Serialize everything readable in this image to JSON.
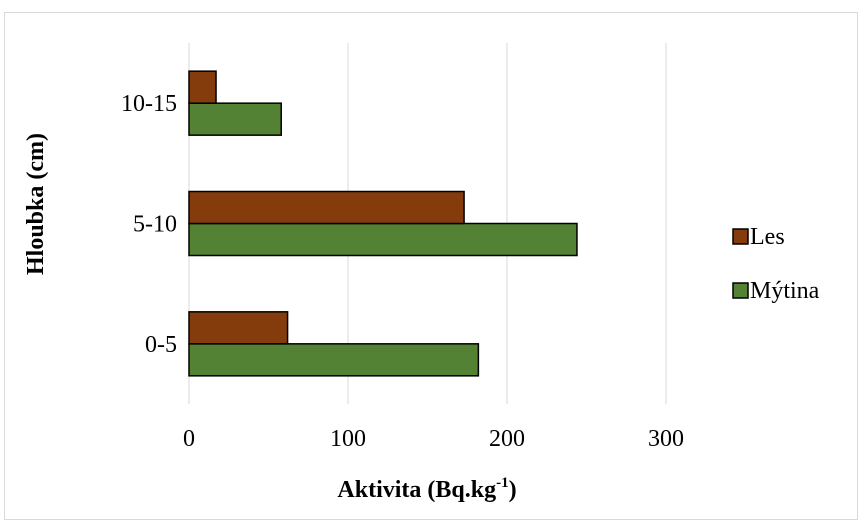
{
  "chart_data": {
    "type": "bar",
    "orientation": "horizontal",
    "categories": [
      "0-5",
      "5-10",
      "10-15"
    ],
    "series": [
      {
        "name": "Mýtina",
        "values": [
          182,
          244,
          58
        ],
        "color": "#548235"
      },
      {
        "name": "Les",
        "values": [
          62,
          173,
          17
        ],
        "color": "#843c0c"
      }
    ],
    "xlabel": "Aktivita (Bq.kg",
    "xlabel_sup": "-1",
    "xlabel_end": ")",
    "ylabel": "Hloubka (cm)",
    "xlim": [
      0,
      300
    ],
    "xticks": [
      0,
      100,
      200,
      300
    ],
    "grid": "vertical",
    "legend_position": "right",
    "legend_order": [
      "Les",
      "Mýtina"
    ]
  }
}
